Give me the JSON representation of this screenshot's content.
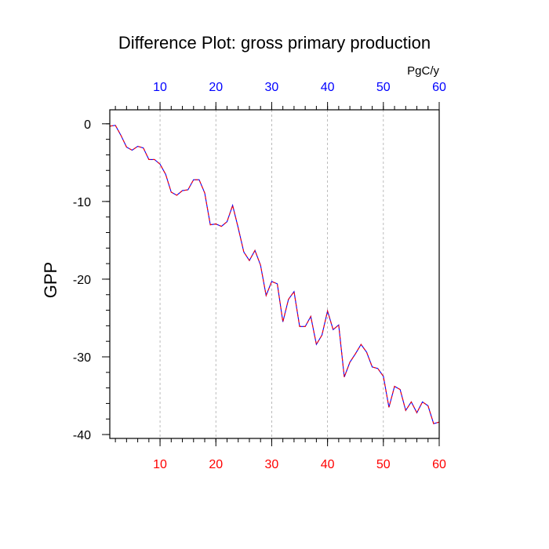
{
  "chart_data": {
    "type": "line",
    "title": "Difference Plot: gross primary production",
    "units": "PgC/y",
    "ylabel": "GPP",
    "xlabel": "",
    "xlim": [
      1,
      60
    ],
    "ylim": [
      -40.5,
      1.8
    ],
    "x_ticks": [
      10,
      20,
      30,
      40,
      50,
      60
    ],
    "y_ticks": [
      0,
      -10,
      -20,
      -30,
      -40
    ],
    "grid": {
      "vertical_dashed": true,
      "horizontal": false
    },
    "colors": {
      "bottom_tick_labels": "#ff0000",
      "top_tick_labels": "#0000ff",
      "series_line_a": "#0000ff",
      "series_line_b": "#ff0000",
      "grid": "#aaaaaa"
    },
    "series": [
      {
        "x": [
          1,
          2,
          3,
          4,
          5,
          6,
          7,
          8,
          9,
          10,
          11,
          12,
          13,
          14,
          15,
          16,
          17,
          18,
          19,
          20,
          21,
          22,
          23,
          24,
          25,
          26,
          27,
          28,
          29,
          30,
          31,
          32,
          33,
          34,
          35,
          36,
          37,
          38,
          39,
          40,
          41,
          42,
          43,
          44,
          45,
          46,
          47,
          48,
          49,
          50,
          51,
          52,
          53,
          54,
          55,
          56,
          57,
          58,
          59,
          60
        ],
        "values": [
          -0.3,
          -0.2,
          -1.5,
          -3.0,
          -3.4,
          -2.9,
          -3.1,
          -4.6,
          -4.6,
          -5.2,
          -6.5,
          -8.8,
          -9.2,
          -8.6,
          -8.5,
          -7.2,
          -7.2,
          -8.9,
          -13.0,
          -12.9,
          -13.2,
          -12.6,
          -10.5,
          -13.4,
          -16.5,
          -17.6,
          -16.3,
          -18.2,
          -22.1,
          -20.3,
          -20.6,
          -25.5,
          -22.6,
          -21.6,
          -26.1,
          -26.1,
          -24.8,
          -28.4,
          -27.2,
          -24.1,
          -26.5,
          -25.9,
          -32.6,
          -30.7,
          -29.6,
          -28.4,
          -29.4,
          -31.3,
          -31.5,
          -32.5,
          -36.5,
          -33.8,
          -34.2,
          -36.9,
          -35.8,
          -37.2,
          -35.8,
          -36.3,
          -38.6,
          -38.4
        ]
      }
    ]
  }
}
